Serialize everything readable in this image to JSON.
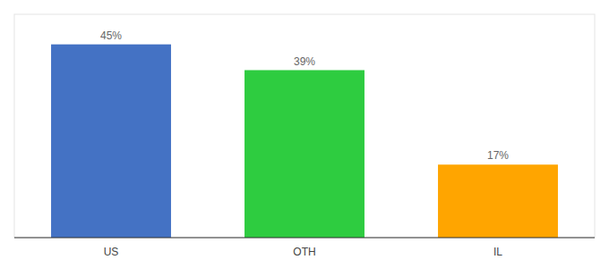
{
  "chart_data": {
    "type": "bar",
    "categories": [
      "US",
      "OTH",
      "IL"
    ],
    "values": [
      45,
      39,
      17
    ],
    "value_labels": [
      "45%",
      "39%",
      "17%"
    ],
    "colors": [
      "#4472C4",
      "#2ECC40",
      "#FFA500"
    ],
    "ylim": [
      0,
      52
    ],
    "data_labels": true,
    "tick_labels": "x"
  }
}
